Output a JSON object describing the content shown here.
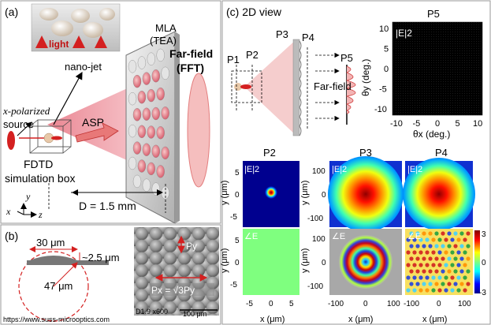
{
  "figure": {
    "panel_a": {
      "label": "(a)",
      "inset_text": "light",
      "mla_title_1": "MLA",
      "mla_title_2": "(TEA)",
      "nanojet_label": "nano-jet",
      "farfield_1": "Far-field",
      "farfield_2": "(FFT)",
      "source_1": "x-polarized",
      "source_2": "source",
      "asp_label": "ASP",
      "fdtd_1": "FDTD",
      "fdtd_2": "simulation box",
      "axis_x": "x",
      "axis_y": "y",
      "axis_z": "z",
      "distance": "D = 1.5 mm"
    },
    "panel_b": {
      "label": "(b)",
      "width_label": "30 μm",
      "sag_label": "~2.5 μm",
      "radius_label": "47 μm",
      "py_label": "Py",
      "px_label": "Px = √3Py",
      "sem_info": "D1.9  x600",
      "scale_bar": "100 μm",
      "source_url": "https://www.suss-microoptics.com"
    },
    "panel_c": {
      "label": "(c) 2D view",
      "planes": [
        "P1",
        "P2",
        "P3",
        "P4",
        "P5"
      ],
      "farfield_label": "Far-field",
      "p5_title": "P5",
      "p5_intensity": "|E|2",
      "p5_xlabel": "θx (deg.)",
      "p5_ylabel": "θy (deg.)",
      "p5_ticks": [
        "-10",
        "-5",
        "0",
        "5",
        "10"
      ],
      "p5_yticks": [
        "10",
        "5",
        "0",
        "-5",
        "-10"
      ],
      "map_titles": [
        "P2",
        "P3",
        "P4"
      ],
      "intensity_label": "|E|2",
      "phase_label": "∠E",
      "p2_ylabel": "y (μm)",
      "p2_yticks": [
        "5",
        "0",
        "-5"
      ],
      "p2_xticks": [
        "-5",
        "0",
        "5"
      ],
      "p2_xlabel": "x (μm)",
      "p3_ylabel": "y (μm)",
      "p3_yticks": [
        "100",
        "0",
        "-100"
      ],
      "p3_xticks": [
        "-100",
        "0",
        "100"
      ],
      "p3_xlabel": "x (μm)",
      "p4_xticks": [
        "-100",
        "0",
        "100"
      ],
      "p4_xlabel": "x (μm)",
      "colorbar_ticks": [
        "3",
        "0",
        "-3"
      ]
    },
    "colors": {
      "red": "#d42020",
      "jet_blue": "#00008f",
      "phase_green": "#7fff7f",
      "pink": "#f2b6b6"
    }
  }
}
